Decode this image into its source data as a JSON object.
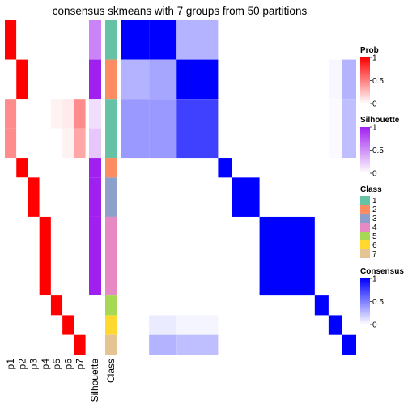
{
  "chart_data": {
    "type": "heatmap",
    "title": "consensus skmeans with 7 groups from 50 partitions",
    "row_groups": [
      {
        "class": "1",
        "count": 2
      },
      {
        "class": "2",
        "count": 2
      },
      {
        "class": "1",
        "count": 3
      },
      {
        "class": "2",
        "count": 1
      },
      {
        "class": "3",
        "count": 2
      },
      {
        "class": "4",
        "count": 4
      },
      {
        "class": "5",
        "count": 1
      },
      {
        "class": "6",
        "count": 1
      },
      {
        "class": "7",
        "count": 1
      }
    ],
    "group_labels": [
      "p1",
      "p2",
      "p3",
      "p4",
      "p5",
      "p6",
      "p7"
    ],
    "rows": [
      {
        "class": "1",
        "silhouette": 0.55,
        "prob": [
          1,
          0,
          0,
          0,
          0,
          0,
          0
        ]
      },
      {
        "class": "1",
        "silhouette": 0.15,
        "prob": [
          0.45,
          0,
          0,
          0,
          0.05,
          0.08,
          0.45
        ]
      },
      {
        "class": "1",
        "silhouette": 0.25,
        "prob": [
          0.45,
          0,
          0,
          0,
          0,
          0.05,
          0.35
        ]
      },
      {
        "class": "2",
        "silhouette": 1,
        "prob": [
          0,
          1,
          0,
          0,
          0,
          0,
          0
        ]
      },
      {
        "class": "2",
        "silhouette": 1,
        "prob": [
          0,
          1,
          0,
          0,
          0,
          0,
          0
        ]
      },
      {
        "class": "3",
        "silhouette": 1,
        "prob": [
          0,
          0,
          1,
          0,
          0,
          0,
          0
        ]
      },
      {
        "class": "4",
        "silhouette": 1,
        "prob": [
          0,
          0,
          0,
          1,
          0,
          0,
          0
        ]
      },
      {
        "class": "4",
        "silhouette": 1,
        "prob": [
          0,
          0,
          0,
          1,
          0,
          0,
          0
        ]
      },
      {
        "class": "5",
        "silhouette": 0,
        "prob": [
          0,
          0,
          0,
          0,
          1,
          0,
          0
        ]
      },
      {
        "class": "6",
        "silhouette": 0,
        "prob": [
          0,
          0,
          0,
          0,
          0,
          1,
          0
        ]
      },
      {
        "class": "7",
        "silhouette": 0,
        "prob": [
          0,
          0,
          0,
          0,
          0,
          0,
          1
        ]
      }
    ],
    "consensus_blocks": [
      {
        "row_class": "1",
        "col_class": "1",
        "value": 1
      },
      {
        "row_class": "2",
        "col_class": "2",
        "value": 1
      },
      {
        "row_class": "3",
        "col_class": "3",
        "value": 1
      },
      {
        "row_class": "4",
        "col_class": "4",
        "value": 1
      },
      {
        "row_class": "5",
        "col_class": "5",
        "value": 1
      },
      {
        "row_class": "6",
        "col_class": "6",
        "value": 1
      },
      {
        "row_class": "7",
        "col_class": "7",
        "value": 1
      }
    ],
    "consensus_sub": [
      [
        1,
        1,
        0.3,
        0.45
      ],
      [
        0.3,
        0.35,
        1,
        0.75
      ],
      [
        0.4,
        0.4,
        0.75,
        1
      ]
    ],
    "consensus_extra": [
      {
        "row": 1,
        "col_class": "6",
        "value": 0.03
      },
      {
        "row": 1,
        "col_class": "7",
        "value": 0.3
      },
      {
        "row": 2,
        "col_class": "6",
        "value": 0.02
      },
      {
        "row": 2,
        "col_class": "7",
        "value": 0.25
      },
      {
        "row": 9,
        "col": 1,
        "value": 0.08
      },
      {
        "row": 9,
        "col": 2,
        "value": 0.04
      },
      {
        "row": 10,
        "col": 1,
        "value": 0.3
      },
      {
        "row": 10,
        "col": 2,
        "value": 0.25
      }
    ],
    "annotation_labels": {
      "silhouette": "Silhouette",
      "class": "Class"
    },
    "legends": [
      {
        "title": "Prob",
        "ticks": [
          "1",
          "0.5",
          "0"
        ],
        "low": "#ffffff",
        "high": "#ff0000"
      },
      {
        "title": "Silhouette",
        "ticks": [
          "1",
          "0.5",
          "0"
        ],
        "low": "#ffffff",
        "high": "#a020f0"
      },
      {
        "title": "Class",
        "items": [
          {
            "label": "1",
            "color": "#66c2a5"
          },
          {
            "label": "2",
            "color": "#fc8d62"
          },
          {
            "label": "3",
            "color": "#8da0cb"
          },
          {
            "label": "4",
            "color": "#e78ac3"
          },
          {
            "label": "5",
            "color": "#a6d854"
          },
          {
            "label": "6",
            "color": "#ffd92f"
          },
          {
            "label": "7",
            "color": "#e5c494"
          }
        ]
      },
      {
        "title": "Consensus",
        "ticks": [
          "1",
          "0.5",
          "0"
        ],
        "low": "#ffffff",
        "high": "#0000ff"
      }
    ]
  }
}
